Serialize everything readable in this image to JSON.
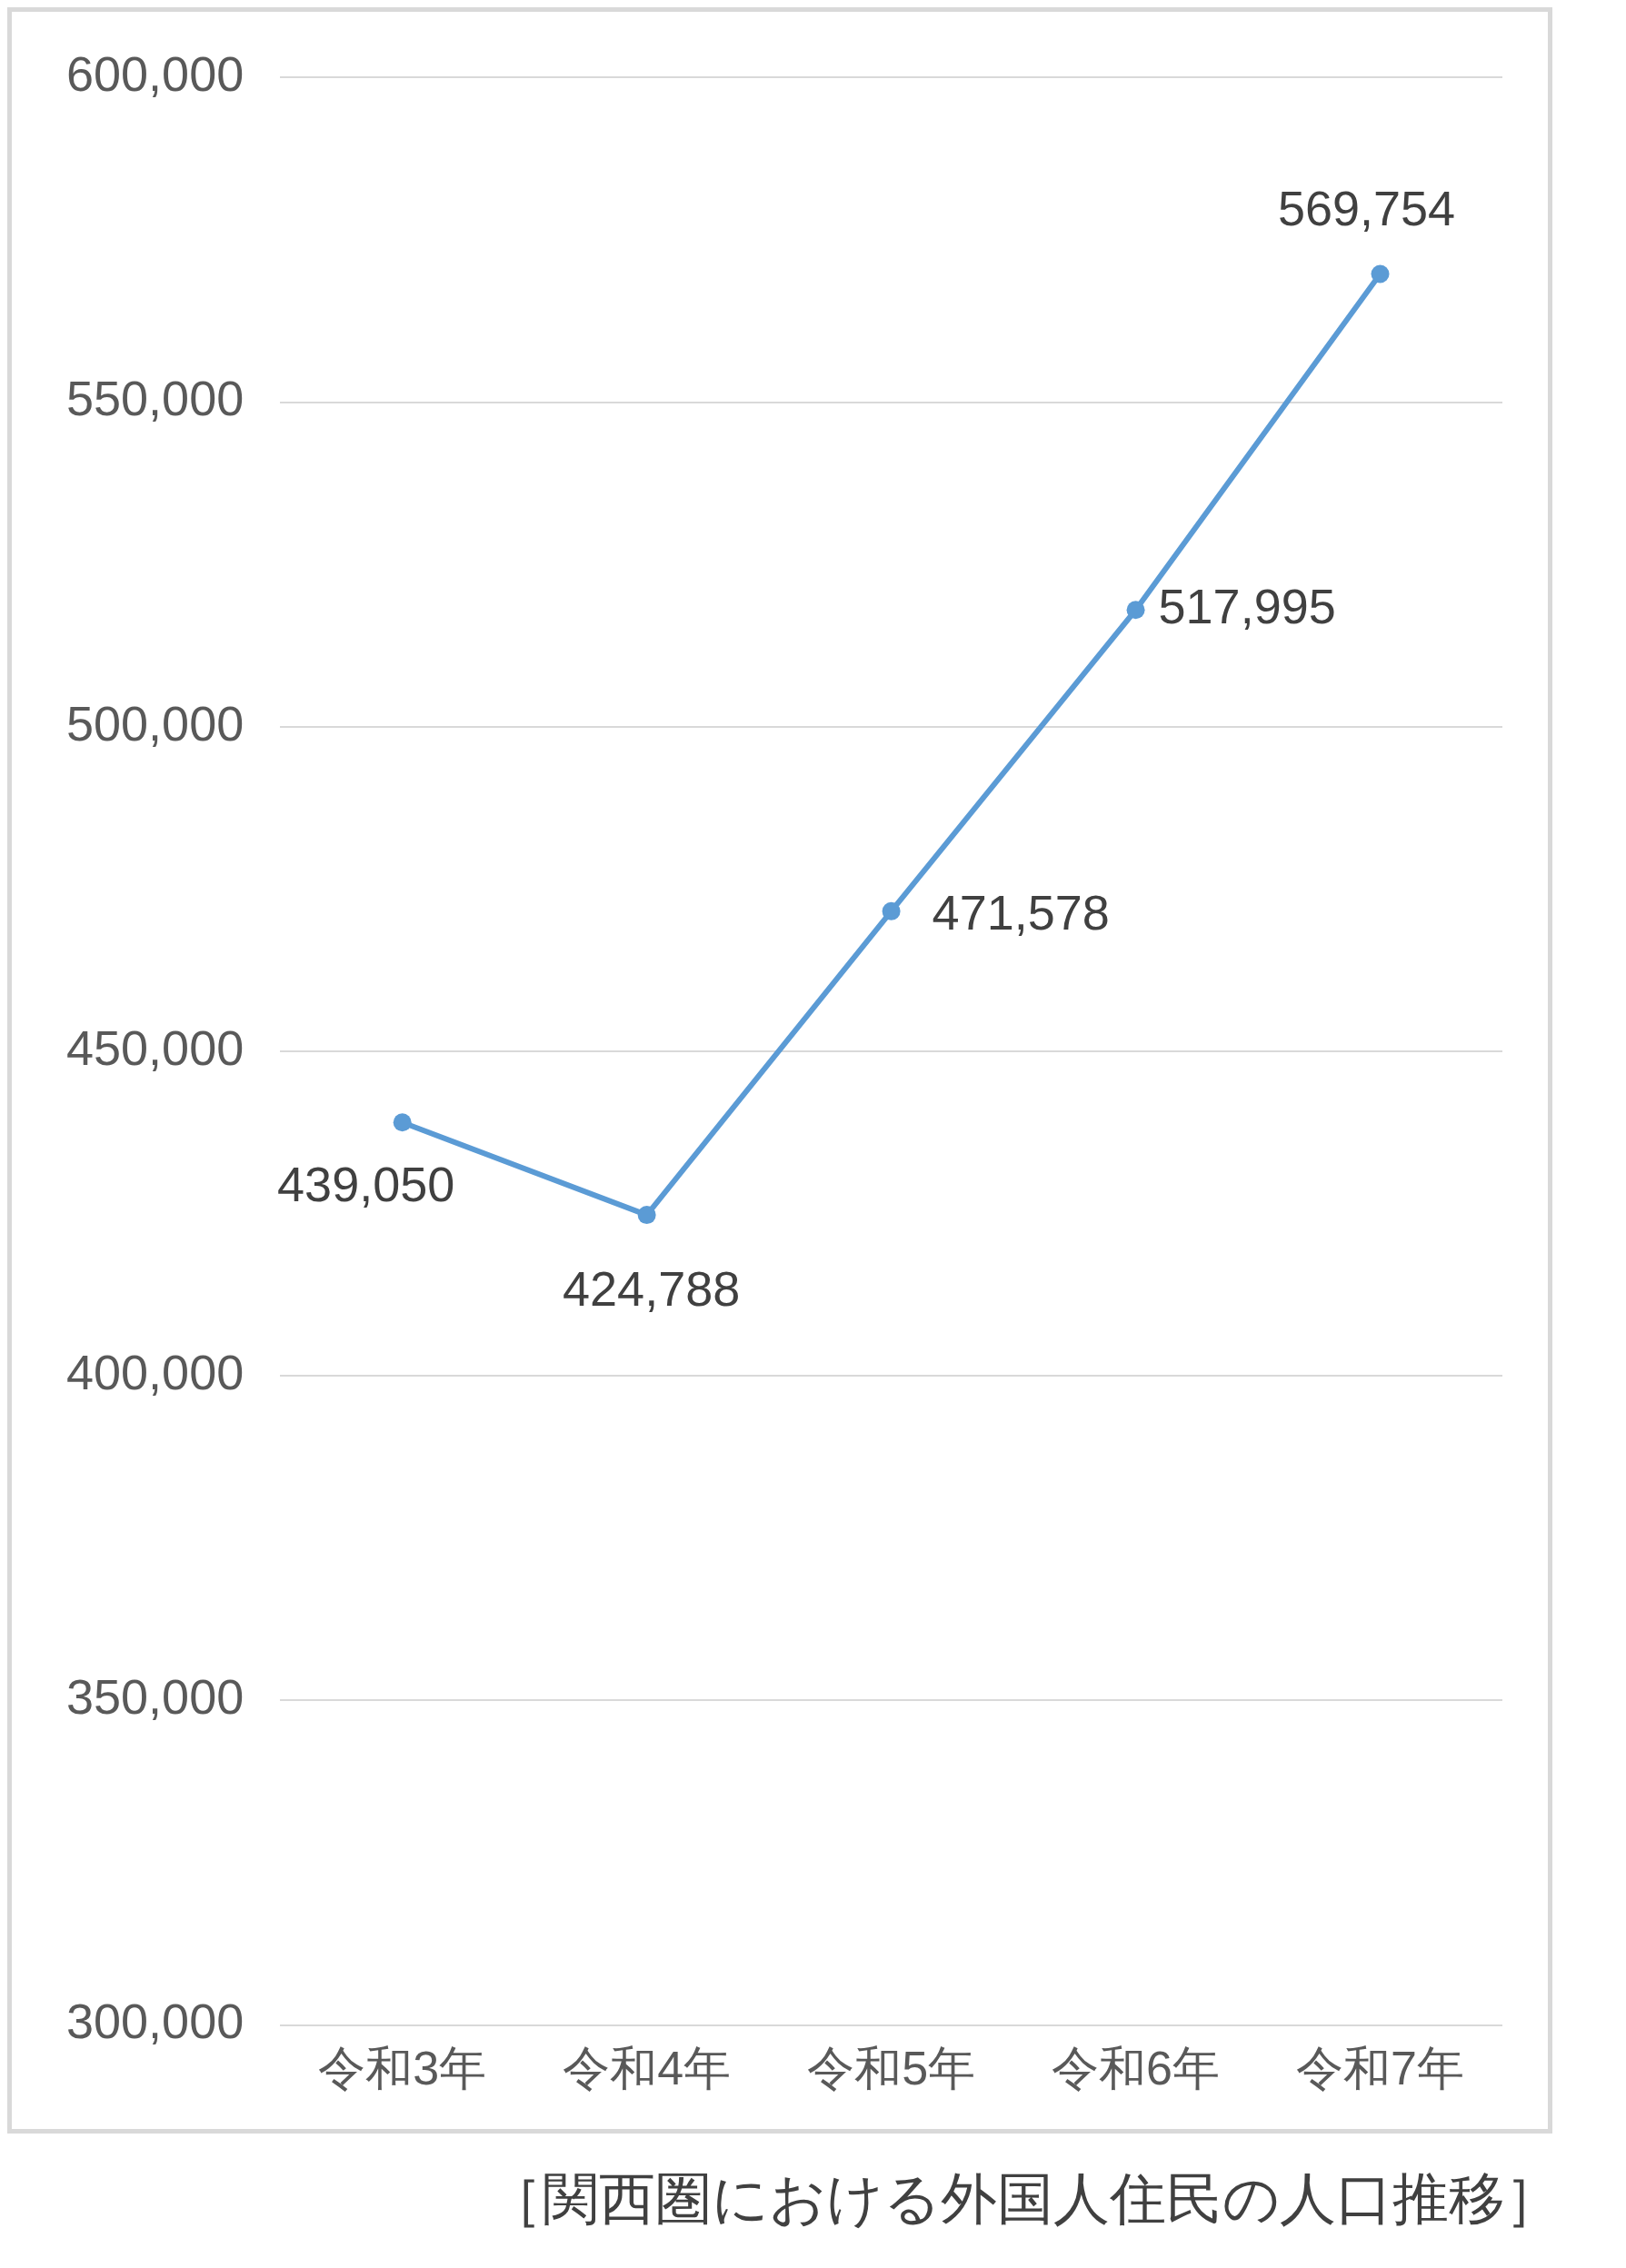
{
  "chart_data": {
    "type": "line",
    "categories": [
      "令和3年",
      "令和4年",
      "令和5年",
      "令和6年",
      "令和7年"
    ],
    "series": [
      {
        "color": "#5b9bd5",
        "values": [
          439050,
          424788,
          471578,
          517995,
          569754
        ],
        "value_labels": [
          "439,050",
          "424,788",
          "471,578",
          "517,995",
          "569,754"
        ]
      }
    ],
    "ylim": [
      300000,
      600000
    ],
    "yticks": [
      {
        "value": 300000,
        "label": "300,000"
      },
      {
        "value": 350000,
        "label": "350,000"
      },
      {
        "value": 400000,
        "label": "400,000"
      },
      {
        "value": 450000,
        "label": "450,000"
      },
      {
        "value": 500000,
        "label": "500,000"
      },
      {
        "value": 550000,
        "label": "550,000"
      },
      {
        "value": 600000,
        "label": "600,000"
      }
    ],
    "grid": "y",
    "legend": false,
    "marker": "circle",
    "line_style": "solid",
    "annotations": [
      "［関西圏における外国人住民の人口推移］"
    ]
  }
}
